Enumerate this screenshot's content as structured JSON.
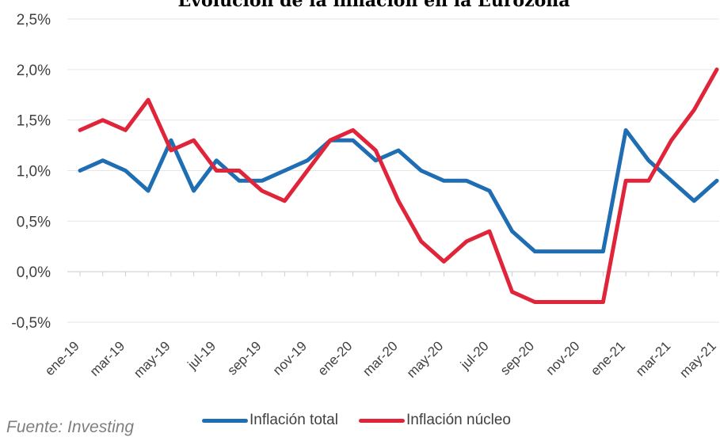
{
  "chart_data": {
    "type": "line",
    "title": "Evolución de la inflación en la Eurozona",
    "source": "Fuente: Investing",
    "ylim": [
      -0.5,
      2.5
    ],
    "yticks": [
      "-0,5%",
      "0,0%",
      "0,5%",
      "1,0%",
      "1,5%",
      "2,0%",
      "2,5%"
    ],
    "ytick_values": [
      -0.5,
      0,
      0.5,
      1.0,
      1.5,
      2.0,
      2.5
    ],
    "x": [
      "ene-19",
      "feb-19",
      "mar-19",
      "abr-19",
      "may-19",
      "jun-19",
      "jul-19",
      "ago-19",
      "sep-19",
      "oct-19",
      "nov-19",
      "dic-19",
      "ene-20",
      "feb-20",
      "mar-20",
      "abr-20",
      "may-20",
      "jun-20",
      "jul-20",
      "ago-20",
      "sep-20",
      "oct-20",
      "nov-20",
      "dic-20",
      "ene-21",
      "feb-21",
      "mar-21",
      "abr-21",
      "may-21"
    ],
    "xtick_labels": [
      "ene-19",
      "mar-19",
      "may-19",
      "jul-19",
      "sep-19",
      "nov-19",
      "ene-20",
      "mar-20",
      "may-20",
      "jul-20",
      "sep-20",
      "nov-20",
      "ene-21",
      "mar-21",
      "may-21"
    ],
    "grid": true,
    "legend_position": "bottom",
    "series": [
      {
        "name": "Inflación total",
        "color": "#1f6db3",
        "values": [
          1.0,
          1.1,
          1.0,
          0.8,
          1.3,
          0.8,
          1.1,
          0.9,
          0.9,
          1.0,
          1.1,
          1.3,
          1.3,
          1.1,
          1.2,
          1.0,
          0.9,
          0.9,
          0.8,
          0.4,
          0.2,
          0.2,
          0.2,
          0.2,
          1.4,
          1.1,
          0.9,
          0.7,
          0.9
        ]
      },
      {
        "name": "Inflación núcleo",
        "color": "#e0243a",
        "values": [
          1.4,
          1.5,
          1.4,
          1.7,
          1.2,
          1.3,
          1.0,
          1.0,
          0.8,
          0.7,
          1.0,
          1.3,
          1.4,
          1.2,
          0.7,
          0.3,
          0.1,
          0.3,
          0.4,
          -0.2,
          -0.3,
          -0.3,
          -0.3,
          -0.3,
          0.9,
          0.9,
          1.3,
          1.6,
          2.0
        ]
      }
    ]
  }
}
